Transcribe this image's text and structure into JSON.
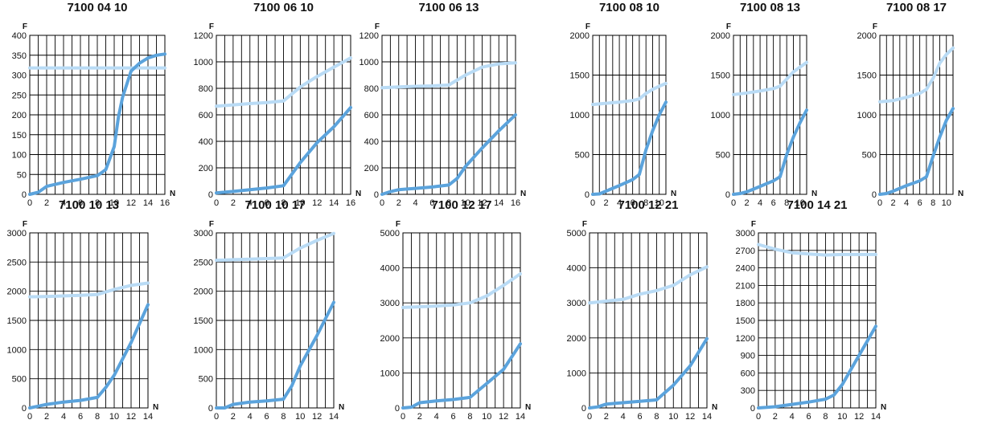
{
  "colors": {
    "dark_series": "#5ba3dc",
    "light_series": "#b9dbf5",
    "grid": "#000000"
  },
  "chart_data": [
    {
      "type": "line",
      "title": "7100 04 10",
      "xlabel": "N",
      "ylabel": "F",
      "xlim": [
        0,
        16
      ],
      "ylim": [
        0,
        400
      ],
      "xticks": [
        0,
        2,
        4,
        6,
        8,
        10,
        12,
        14,
        16
      ],
      "yticks": [
        0,
        50,
        100,
        150,
        200,
        250,
        300,
        350,
        400
      ],
      "series": [
        {
          "x": [
            0,
            16
          ],
          "y": [
            318,
            318
          ]
        },
        {
          "x": [
            0,
            1,
            2,
            4,
            6,
            8,
            9,
            10,
            10.5,
            11,
            12,
            13,
            14,
            15,
            16
          ],
          "y": [
            0,
            5,
            20,
            30,
            38,
            47,
            62,
            120,
            195,
            245,
            310,
            330,
            343,
            350,
            353
          ]
        }
      ]
    },
    {
      "type": "line",
      "title": "7100 06 10",
      "xlabel": "N",
      "ylabel": "F",
      "xlim": [
        0,
        16
      ],
      "ylim": [
        0,
        1200
      ],
      "xticks": [
        0,
        2,
        4,
        6,
        8,
        10,
        12,
        14,
        16
      ],
      "yticks": [
        0,
        200,
        400,
        600,
        800,
        1000,
        1200
      ],
      "series": [
        {
          "x": [
            0,
            2,
            4,
            6,
            8,
            10,
            12,
            14,
            16
          ],
          "y": [
            665,
            675,
            685,
            693,
            705,
            810,
            890,
            960,
            1030
          ]
        },
        {
          "x": [
            0,
            2,
            4,
            6,
            8,
            10,
            12,
            14,
            16
          ],
          "y": [
            10,
            22,
            35,
            48,
            65,
            240,
            390,
            510,
            655
          ]
        }
      ]
    },
    {
      "type": "line",
      "title": "7100 06 13",
      "xlabel": "N",
      "ylabel": "F",
      "xlim": [
        0,
        16
      ],
      "ylim": [
        0,
        1200
      ],
      "xticks": [
        0,
        2,
        4,
        6,
        8,
        10,
        12,
        14,
        16
      ],
      "yticks": [
        0,
        200,
        400,
        600,
        800,
        1000,
        1200
      ],
      "series": [
        {
          "x": [
            0,
            2,
            4,
            6,
            8,
            10,
            12,
            14,
            16
          ],
          "y": [
            805,
            810,
            815,
            818,
            825,
            900,
            960,
            985,
            993
          ]
        },
        {
          "x": [
            0,
            1,
            2,
            4,
            6,
            8,
            9,
            10,
            12,
            14,
            16
          ],
          "y": [
            0,
            20,
            35,
            45,
            55,
            70,
            120,
            210,
            350,
            480,
            600
          ]
        }
      ]
    },
    {
      "type": "line",
      "title": "7100 08 10",
      "xlabel": "N",
      "ylabel": "F",
      "xlim": [
        0,
        11
      ],
      "ylim": [
        0,
        2000
      ],
      "xticks": [
        0,
        2,
        4,
        6,
        8,
        10
      ],
      "yticks": [
        0,
        500,
        1000,
        1500,
        2000
      ],
      "series": [
        {
          "x": [
            0,
            2,
            4,
            6,
            7,
            8,
            9,
            10,
            11
          ],
          "y": [
            1130,
            1145,
            1160,
            1180,
            1200,
            1270,
            1320,
            1360,
            1395
          ]
        },
        {
          "x": [
            0,
            1,
            2,
            4,
            6,
            7,
            8,
            9,
            10,
            11
          ],
          "y": [
            0,
            5,
            40,
            110,
            185,
            250,
            560,
            800,
            1000,
            1160
          ]
        }
      ]
    },
    {
      "type": "line",
      "title": "7100 08 13",
      "xlabel": "N",
      "ylabel": "F",
      "xlim": [
        0,
        11
      ],
      "ylim": [
        0,
        2000
      ],
      "xticks": [
        0,
        2,
        4,
        6,
        8,
        10
      ],
      "yticks": [
        0,
        500,
        1000,
        1500,
        2000
      ],
      "series": [
        {
          "x": [
            0,
            2,
            4,
            6,
            7,
            8,
            9,
            10,
            11
          ],
          "y": [
            1255,
            1275,
            1300,
            1330,
            1360,
            1450,
            1540,
            1600,
            1660
          ]
        },
        {
          "x": [
            0,
            1,
            2,
            4,
            6,
            7,
            8,
            9,
            10,
            11
          ],
          "y": [
            0,
            10,
            30,
            100,
            170,
            220,
            500,
            720,
            900,
            1060
          ]
        }
      ]
    },
    {
      "type": "line",
      "title": "7100 08 17",
      "xlabel": "N",
      "ylabel": "F",
      "xlim": [
        0,
        11
      ],
      "ylim": [
        0,
        2000
      ],
      "xticks": [
        0,
        2,
        4,
        6,
        8,
        10
      ],
      "yticks": [
        0,
        500,
        1000,
        1500,
        2000
      ],
      "series": [
        {
          "x": [
            0,
            2,
            4,
            6,
            7,
            8,
            9,
            10,
            11
          ],
          "y": [
            1165,
            1180,
            1220,
            1270,
            1320,
            1460,
            1650,
            1760,
            1840
          ]
        },
        {
          "x": [
            0,
            1,
            2,
            4,
            6,
            7,
            8,
            9,
            10,
            11
          ],
          "y": [
            0,
            10,
            40,
            110,
            170,
            220,
            480,
            720,
            930,
            1080
          ]
        }
      ]
    },
    {
      "type": "line",
      "title": "7100 10 13",
      "xlabel": "N",
      "ylabel": "F",
      "xlim": [
        0,
        14
      ],
      "ylim": [
        0,
        3000
      ],
      "xticks": [
        0,
        2,
        4,
        6,
        8,
        10,
        12,
        14
      ],
      "yticks": [
        0,
        500,
        1000,
        1500,
        2000,
        2500,
        3000
      ],
      "series": [
        {
          "x": [
            0,
            2,
            4,
            6,
            8,
            10,
            12,
            14
          ],
          "y": [
            1905,
            1910,
            1920,
            1930,
            1945,
            2030,
            2100,
            2140
          ]
        },
        {
          "x": [
            0,
            1,
            2,
            4,
            6,
            8,
            9,
            10,
            12,
            14
          ],
          "y": [
            0,
            30,
            60,
            100,
            130,
            180,
            350,
            560,
            1120,
            1770
          ]
        }
      ]
    },
    {
      "type": "line",
      "title": "7100 10 17",
      "xlabel": "N",
      "ylabel": "F",
      "xlim": [
        0,
        14
      ],
      "ylim": [
        0,
        3000
      ],
      "xticks": [
        0,
        2,
        4,
        6,
        8,
        10,
        12,
        14
      ],
      "yticks": [
        0,
        500,
        1000,
        1500,
        2000,
        2500,
        3000
      ],
      "series": [
        {
          "x": [
            0,
            2,
            4,
            6,
            8,
            10,
            12,
            14
          ],
          "y": [
            2530,
            2540,
            2550,
            2560,
            2570,
            2740,
            2870,
            2990
          ]
        },
        {
          "x": [
            0,
            1,
            2,
            4,
            6,
            8,
            9,
            10,
            12,
            14
          ],
          "y": [
            0,
            0,
            60,
            100,
            120,
            150,
            380,
            720,
            1240,
            1810
          ]
        }
      ]
    },
    {
      "type": "line",
      "title": "7100 12 17",
      "xlabel": "N",
      "ylabel": "F",
      "xlim": [
        0,
        14
      ],
      "ylim": [
        0,
        5000
      ],
      "xticks": [
        0,
        2,
        4,
        6,
        8,
        10,
        12,
        14
      ],
      "yticks": [
        0,
        1000,
        2000,
        3000,
        4000,
        5000
      ],
      "series": [
        {
          "x": [
            0,
            2,
            4,
            6,
            8,
            10,
            12,
            14
          ],
          "y": [
            2870,
            2890,
            2910,
            2940,
            3000,
            3200,
            3500,
            3830
          ]
        },
        {
          "x": [
            0,
            1,
            2,
            4,
            6,
            8,
            10,
            12,
            14
          ],
          "y": [
            0,
            20,
            150,
            200,
            240,
            300,
            700,
            1100,
            1830
          ]
        }
      ]
    },
    {
      "type": "line",
      "title": "7100 12 21",
      "xlabel": "N",
      "ylabel": "F",
      "xlim": [
        0,
        14
      ],
      "ylim": [
        0,
        5000
      ],
      "xticks": [
        0,
        2,
        4,
        6,
        8,
        10,
        12,
        14
      ],
      "yticks": [
        0,
        1000,
        2000,
        3000,
        4000,
        5000
      ],
      "series": [
        {
          "x": [
            0,
            2,
            4,
            6,
            8,
            10,
            12,
            14
          ],
          "y": [
            3000,
            3050,
            3100,
            3250,
            3350,
            3500,
            3800,
            4030
          ]
        },
        {
          "x": [
            0,
            1,
            2,
            4,
            6,
            8,
            10,
            12,
            14
          ],
          "y": [
            0,
            30,
            110,
            150,
            190,
            230,
            650,
            1200,
            1980
          ]
        }
      ]
    },
    {
      "type": "line",
      "title": "7100 14 21",
      "xlabel": "N",
      "ylabel": "F",
      "xlim": [
        0,
        14
      ],
      "ylim": [
        0,
        3000
      ],
      "xticks": [
        0,
        2,
        4,
        6,
        8,
        10,
        12,
        14
      ],
      "yticks": [
        0,
        300,
        600,
        900,
        1200,
        1500,
        1800,
        2100,
        2400,
        2700,
        3000
      ],
      "series": [
        {
          "x": [
            0,
            2,
            4,
            6,
            8,
            10,
            12,
            14
          ],
          "y": [
            2800,
            2720,
            2660,
            2640,
            2620,
            2630,
            2630,
            2630
          ]
        },
        {
          "x": [
            0,
            2,
            4,
            6,
            8,
            9,
            10,
            11,
            12,
            14
          ],
          "y": [
            0,
            20,
            60,
            100,
            150,
            220,
            400,
            650,
            900,
            1400
          ]
        }
      ]
    }
  ]
}
